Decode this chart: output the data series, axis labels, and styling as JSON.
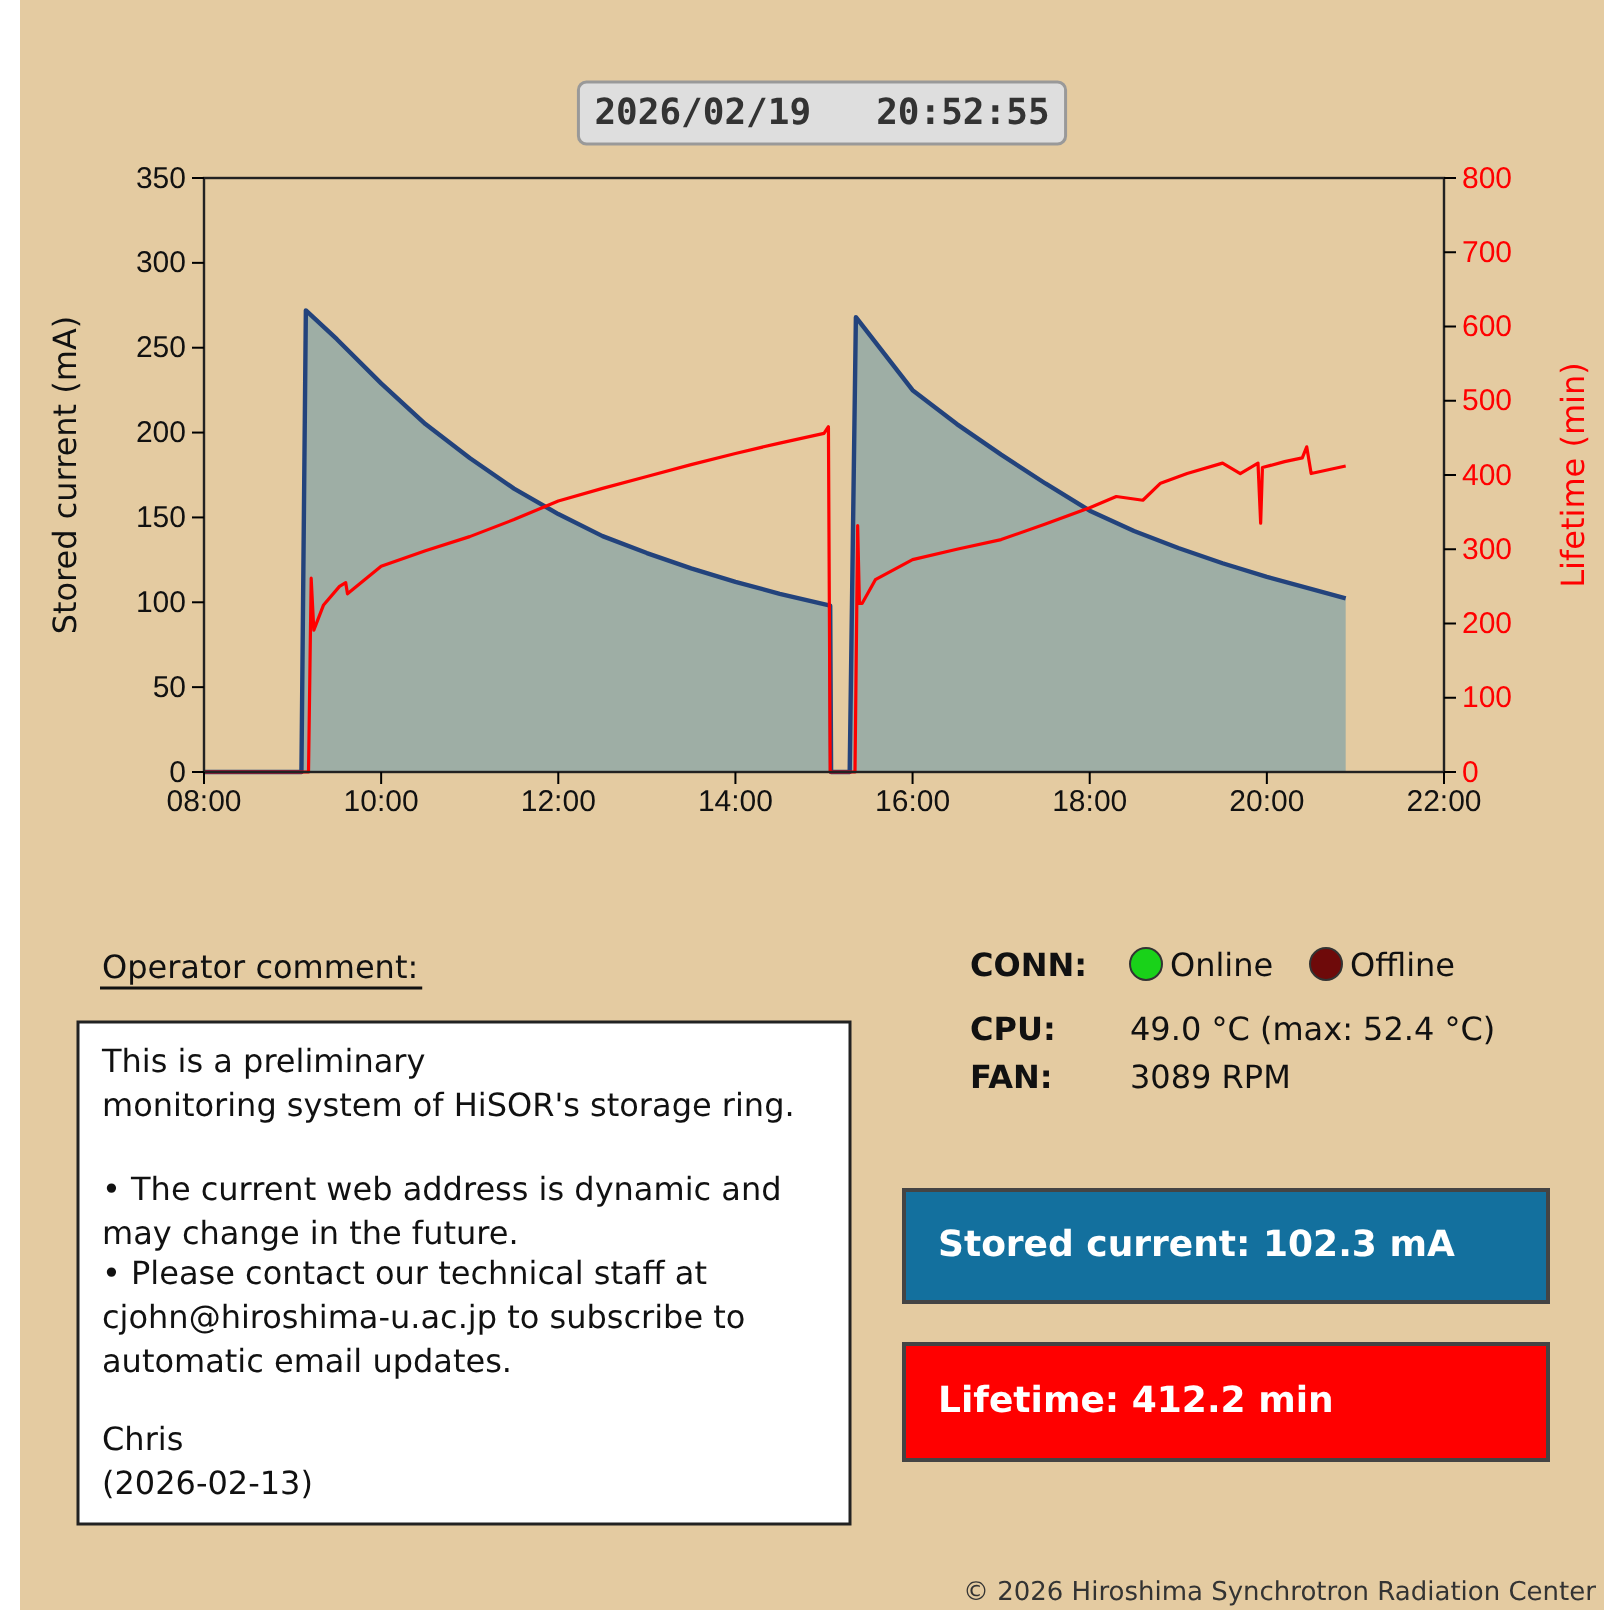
{
  "chart_data": {
    "type": "line",
    "title": "2026/02/19   20:52:55",
    "ylabel": "Stored current (mA)",
    "y2label": "Lifetime (min)",
    "xlim": [
      8,
      22
    ],
    "xticks": [
      {
        "value": 8,
        "label": "08:00"
      },
      {
        "value": 10,
        "label": "10:00"
      },
      {
        "value": 12,
        "label": "12:00"
      },
      {
        "value": 14,
        "label": "14:00"
      },
      {
        "value": 16,
        "label": "16:00"
      },
      {
        "value": 18,
        "label": "18:00"
      },
      {
        "value": 20,
        "label": "20:00"
      },
      {
        "value": 22,
        "label": "22:00"
      }
    ],
    "ylim": [
      0,
      350
    ],
    "yticks": [
      0,
      50,
      100,
      150,
      200,
      250,
      300,
      350
    ],
    "y2lim": [
      0,
      800
    ],
    "y2ticks": [
      0,
      100,
      200,
      300,
      400,
      500,
      600,
      700,
      800
    ],
    "grid": false,
    "marker": "none",
    "line_style": "solid",
    "series": [
      {
        "type": "area",
        "color": "#23437c",
        "x": [
          8,
          9.1,
          9.15,
          9.5,
          10,
          10.5,
          11,
          11.5,
          12,
          12.5,
          13,
          13.5,
          14,
          14.5,
          15.07,
          15.08,
          15.29,
          15.36,
          16,
          16.5,
          17,
          17.5,
          18,
          18.5,
          19,
          19.5,
          20,
          20.89
        ],
        "values": [
          0,
          0,
          272,
          255,
          229,
          205,
          185,
          167,
          152,
          139,
          129,
          120,
          112,
          105,
          98,
          0,
          0,
          268,
          225,
          205,
          187,
          170,
          154,
          142,
          132,
          123,
          115,
          102.3
        ]
      },
      {
        "axis": "y2",
        "color": "#ff0000",
        "x": [
          8,
          9.18,
          9.21,
          9.24,
          9.35,
          9.53,
          9.6,
          9.62,
          10,
          10.5,
          11,
          11.5,
          12,
          12.5,
          13,
          13.5,
          14,
          14.5,
          15,
          15.05,
          15.07,
          15.35,
          15.38,
          15.4,
          15.43,
          15.58,
          16,
          16.5,
          17,
          17.5,
          18,
          18.3,
          18.6,
          18.8,
          19.1,
          19.5,
          19.7,
          19.9,
          19.93,
          19.95,
          20.2,
          20.4,
          20.45,
          20.5,
          20.89
        ],
        "values": [
          0,
          0,
          261,
          191,
          225,
          250,
          255,
          240,
          277,
          298,
          317,
          340,
          365,
          382,
          398,
          414,
          429,
          443,
          456,
          465,
          0,
          0,
          332,
          227,
          227,
          259,
          286,
          300,
          313,
          334,
          356,
          371,
          366,
          389,
          402,
          416,
          402,
          416,
          335,
          410,
          418,
          423,
          438,
          402,
          412.2
        ]
      }
    ],
    "annotations": [
      "Operator comment:",
      "This is a preliminary",
      "monitoring system of HiSOR's storage ring.",
      "• The current web address is dynamic and",
      "may change in the future.",
      "• Please contact our technical staff at",
      "cjohn@hiroshima-u.ac.jp to subscribe to",
      "automatic email updates.",
      "Chris",
      "(2026-02-13)",
      "CONN:",
      "Online",
      "Offline",
      "CPU:",
      "49.0 °C (max: 52.4 °C)",
      "FAN:",
      "3089 RPM",
      "Stored current: 102.3 mA",
      "Lifetime: 412.2 min",
      "© 2026 Hiroshima Synchrotron Radiation Center"
    ]
  }
}
